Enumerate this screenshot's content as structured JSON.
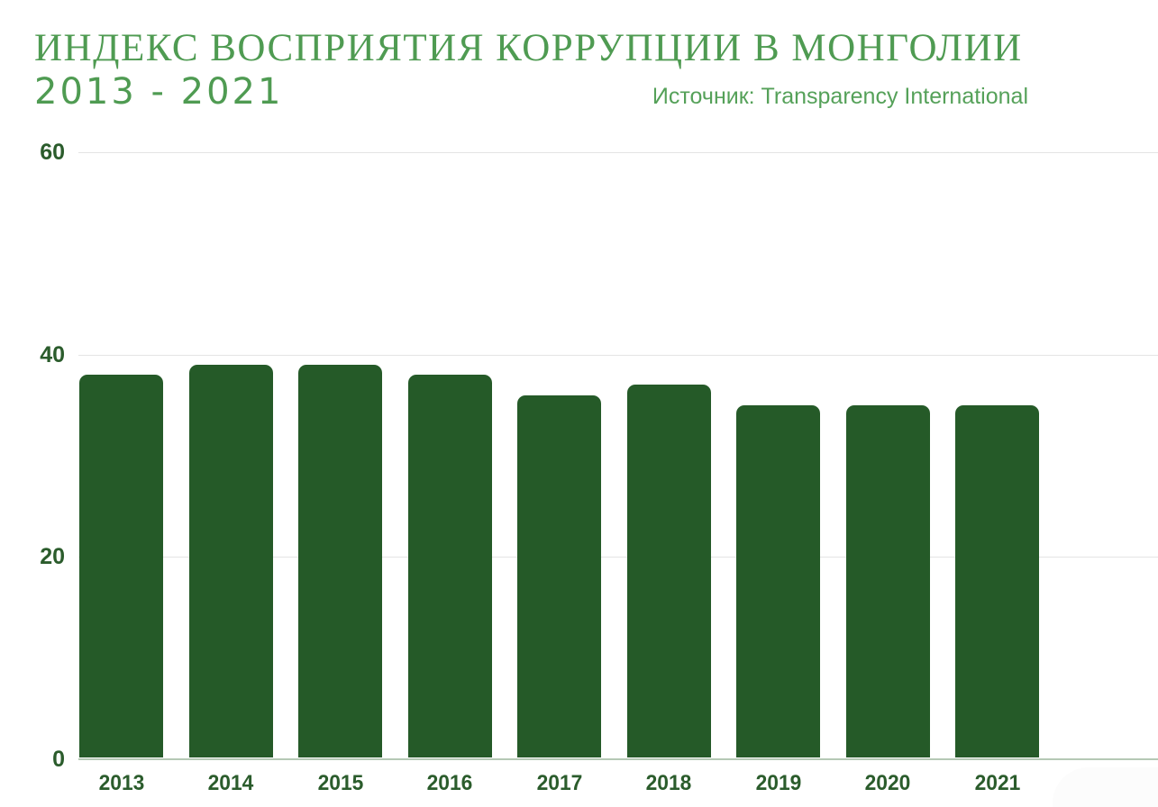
{
  "header": {
    "title_line1": "ИНДЕКС ВОСПРИЯТИЯ КОРРУПЦИИ В МОНГОЛИИ",
    "title_line2": "2013 - 2021",
    "source": "Источник: Transparency International"
  },
  "colors": {
    "bar": "#255A28",
    "title": "#4F9B52",
    "source_text": "#55A159",
    "axis_label": "#2B5C2C",
    "gridline": "#e4e4e4",
    "baseline": "#b5c9b5"
  },
  "chart_data": {
    "type": "bar",
    "title": "ИНДЕКС ВОСПРИЯТИЯ КОРРУПЦИИ В МОНГОЛИИ 2013 - 2021",
    "subtitle": "Источник: Transparency International",
    "categories": [
      "2013",
      "2014",
      "2015",
      "2016",
      "2017",
      "2018",
      "2019",
      "2020",
      "2021"
    ],
    "values": [
      38,
      39,
      39,
      38,
      36,
      37,
      35,
      35,
      35
    ],
    "xlabel": "",
    "ylabel": "",
    "ylim": [
      0,
      60
    ],
    "yticks": [
      0,
      20,
      40,
      60
    ],
    "grid": true,
    "legend": false,
    "bar_color": "#255A28"
  }
}
